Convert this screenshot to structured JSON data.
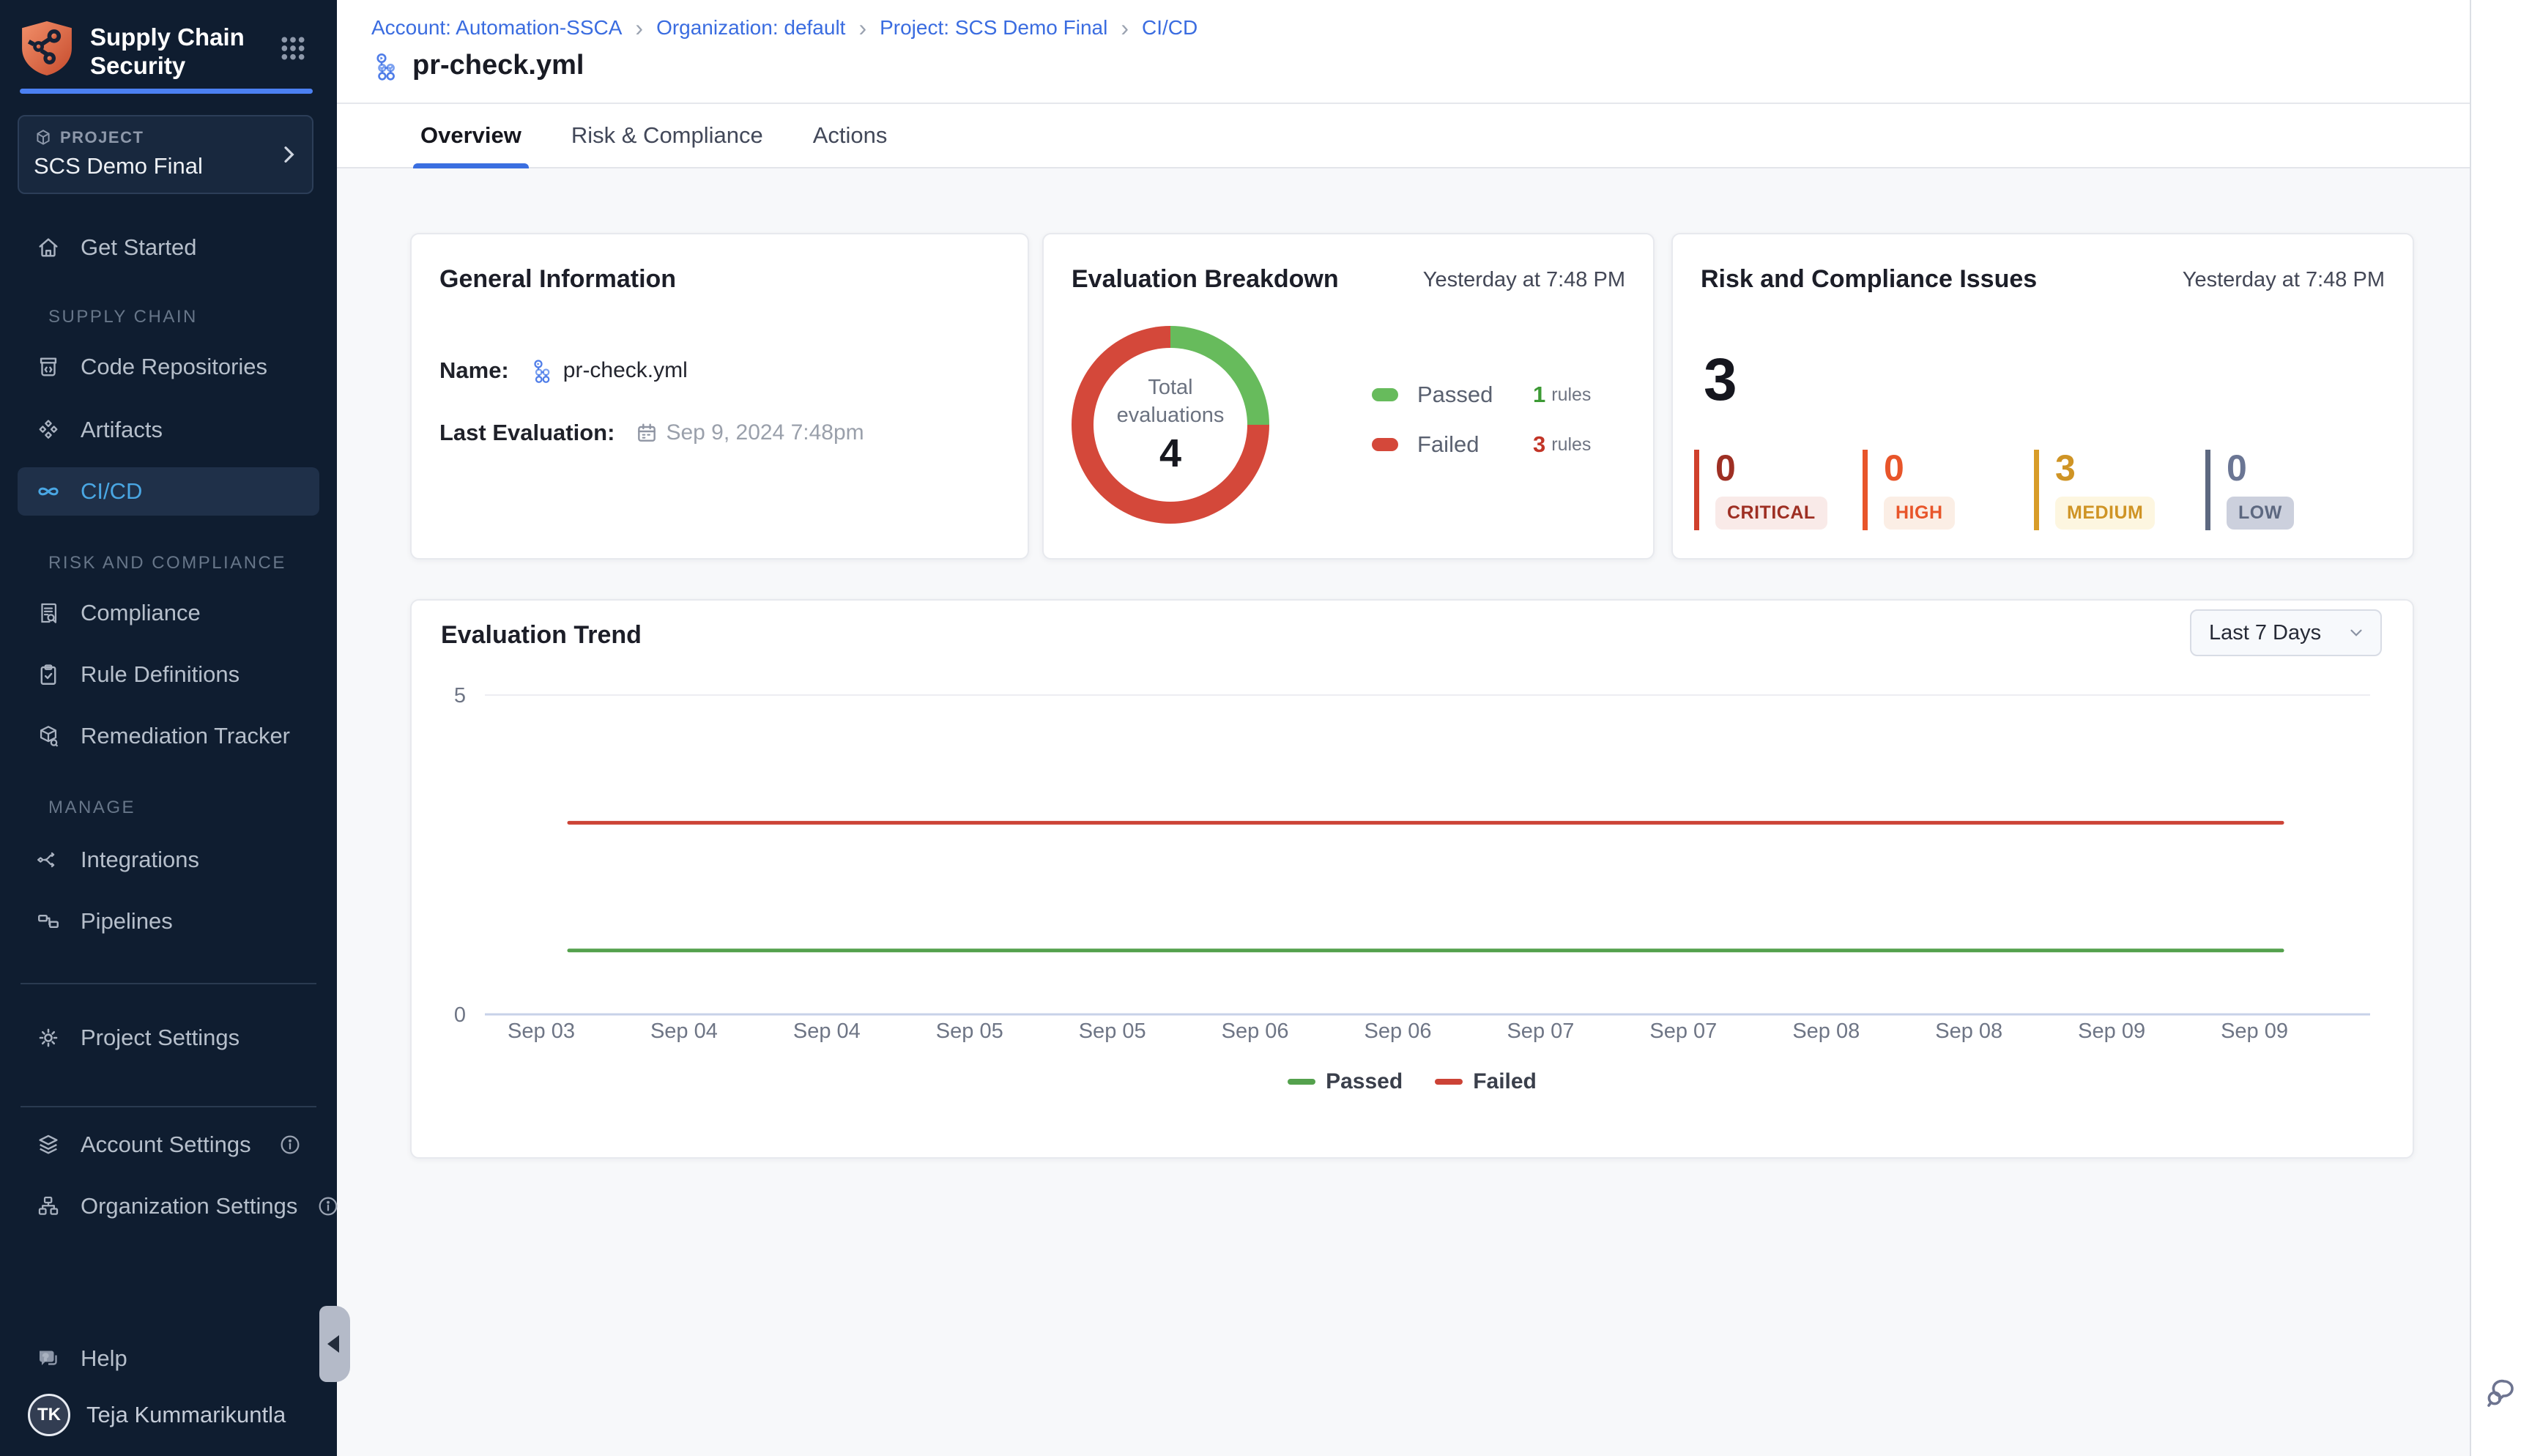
{
  "app": {
    "title_line1": "Supply Chain",
    "title_line2": "Security"
  },
  "sidebar": {
    "project": {
      "label": "PROJECT",
      "name": "SCS Demo Final"
    },
    "get_started": "Get Started",
    "sections": {
      "supply_chain": "SUPPLY CHAIN",
      "risk_compliance": "RISK AND COMPLIANCE",
      "manage": "MANAGE"
    },
    "items": {
      "code_repositories": "Code Repositories",
      "artifacts": "Artifacts",
      "cicd": "CI/CD",
      "compliance": "Compliance",
      "rule_definitions": "Rule Definitions",
      "remediation_tracker": "Remediation Tracker",
      "integrations": "Integrations",
      "pipelines": "Pipelines",
      "project_settings": "Project Settings",
      "account_settings": "Account Settings",
      "organization_settings": "Organization Settings",
      "help": "Help"
    },
    "user": {
      "initials": "TK",
      "name": "Teja Kummarikuntla"
    }
  },
  "header": {
    "breadcrumb": [
      {
        "label": "Account: Automation-SSCA"
      },
      {
        "label": "Organization: default"
      },
      {
        "label": "Project: SCS Demo Final"
      },
      {
        "label": "CI/CD"
      }
    ],
    "breadcrumb_separator": "›",
    "page_title": "pr-check.yml",
    "tabs": [
      {
        "label": "Overview",
        "active": true
      },
      {
        "label": "Risk & Compliance",
        "active": false
      },
      {
        "label": "Actions",
        "active": false
      }
    ]
  },
  "general_info": {
    "title": "General Information",
    "name_label": "Name:",
    "name_value": "pr-check.yml",
    "last_eval_label": "Last Evaluation:",
    "last_eval_value": "Sep 9, 2024 7:48pm"
  },
  "evaluation_breakdown": {
    "title": "Evaluation Breakdown",
    "timestamp": "Yesterday at 7:48 PM",
    "center_label_1": "Total",
    "center_label_2": "evaluations",
    "total": "4",
    "passed": {
      "label": "Passed",
      "count": "1",
      "unit": "rules",
      "color": "#67bb5c",
      "count_color": "#3d9a35"
    },
    "failed": {
      "label": "Failed",
      "count": "3",
      "unit": "rules",
      "color": "#d4483a",
      "count_color": "#c23527"
    }
  },
  "risk_issues": {
    "title": "Risk and Compliance Issues",
    "timestamp": "Yesterday at 7:48 PM",
    "total": "3",
    "severities": [
      {
        "label": "CRITICAL",
        "count": "0",
        "bar_color": "#d0402c",
        "number_color": "#9e2f23",
        "badge_bg": "#f9eae8",
        "badge_text": "#9e2f23"
      },
      {
        "label": "HIGH",
        "count": "0",
        "bar_color": "#e8552a",
        "number_color": "#e8552a",
        "badge_bg": "#fbeee5",
        "badge_text": "#e8552a"
      },
      {
        "label": "MEDIUM",
        "count": "3",
        "bar_color": "#d89c28",
        "number_color": "#cf9425",
        "badge_bg": "#fdf6e0",
        "badge_text": "#cf9425"
      },
      {
        "label": "LOW",
        "count": "0",
        "bar_color": "#5d6880",
        "number_color": "#6b7694",
        "badge_bg": "#ccd0dd",
        "badge_text": "#5d6880"
      }
    ]
  },
  "trend": {
    "title": "Evaluation Trend",
    "range_selector": "Last 7 Days"
  },
  "chart_data": [
    {
      "type": "pie",
      "variant": "donut",
      "title": "Evaluation Breakdown",
      "labels": [
        "Passed",
        "Failed"
      ],
      "values": [
        1,
        3
      ],
      "colors": [
        "#67bb5c",
        "#d4483a"
      ],
      "center_label": "Total evaluations",
      "center_value": 4
    },
    {
      "type": "line",
      "title": "Evaluation Trend",
      "range_label": "Last 7 Days",
      "categories": [
        "Sep 03",
        "Sep 04",
        "Sep 04",
        "Sep 05",
        "Sep 05",
        "Sep 06",
        "Sep 06",
        "Sep 07",
        "Sep 07",
        "Sep 08",
        "Sep 08",
        "Sep 09",
        "Sep 09"
      ],
      "series": [
        {
          "name": "Passed",
          "color": "#54a14d",
          "values": [
            1,
            1,
            1,
            1,
            1,
            1,
            1,
            1,
            1,
            1,
            1,
            1,
            1
          ]
        },
        {
          "name": "Failed",
          "color": "#cc4336",
          "values": [
            3,
            3,
            3,
            3,
            3,
            3,
            3,
            3,
            3,
            3,
            3,
            3,
            3
          ]
        }
      ],
      "ylim": [
        0,
        5
      ],
      "yticks": [
        0,
        5
      ],
      "grid": "top-gridline-and-baseline",
      "legend_position": "bottom"
    }
  ]
}
